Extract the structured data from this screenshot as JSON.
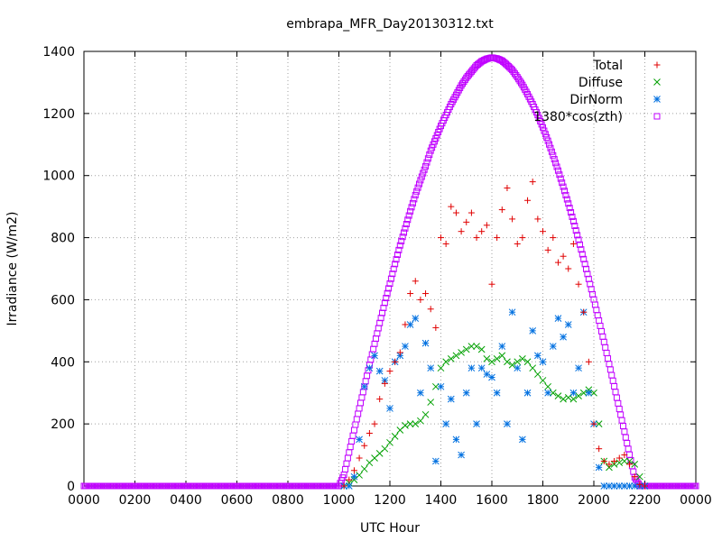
{
  "chart_data": {
    "type": "scatter",
    "title": "embrapa_MFR_Day20130312.txt",
    "xlabel": "UTC Hour",
    "ylabel": "Irradiance (W/m2)",
    "xlim": [
      0,
      24
    ],
    "ylim": [
      0,
      1400
    ],
    "grid": true,
    "legend_position": "top-right",
    "x_tick_labels": [
      "0000",
      "0200",
      "0400",
      "0600",
      "0800",
      "1000",
      "1200",
      "1400",
      "1600",
      "1800",
      "2000",
      "2200",
      "0000"
    ],
    "y_tick_labels": [
      "0",
      "200",
      "400",
      "600",
      "800",
      "1000",
      "1200",
      "1400"
    ],
    "series": [
      {
        "name": "Total",
        "color": "#e00000",
        "marker": "+",
        "x": [
          10.2,
          10.4,
          10.6,
          10.8,
          11.0,
          11.2,
          11.4,
          11.6,
          11.8,
          12.0,
          12.2,
          12.4,
          12.6,
          12.8,
          13.0,
          13.2,
          13.4,
          13.6,
          13.8,
          14.0,
          14.2,
          14.4,
          14.6,
          14.8,
          15.0,
          15.2,
          15.4,
          15.6,
          15.8,
          16.0,
          16.2,
          16.4,
          16.6,
          16.8,
          17.0,
          17.2,
          17.4,
          17.6,
          17.8,
          18.0,
          18.2,
          18.4,
          18.6,
          18.8,
          19.0,
          19.2,
          19.4,
          19.6,
          19.8,
          20.0,
          20.2,
          20.4,
          20.6,
          20.8,
          21.0,
          21.2,
          21.4,
          21.6,
          21.8,
          22.0
        ],
        "y": [
          0,
          20,
          50,
          90,
          130,
          170,
          200,
          280,
          330,
          370,
          400,
          430,
          520,
          620,
          660,
          600,
          620,
          570,
          510,
          800,
          780,
          900,
          880,
          820,
          850,
          880,
          800,
          820,
          840,
          650,
          800,
          890,
          960,
          860,
          780,
          800,
          920,
          980,
          860,
          820,
          760,
          800,
          720,
          740,
          700,
          780,
          650,
          560,
          400,
          200,
          120,
          80,
          70,
          80,
          90,
          100,
          70,
          30,
          5,
          0
        ]
      },
      {
        "name": "Diffuse",
        "color": "#00a000",
        "marker": "x",
        "x": [
          10.2,
          10.4,
          10.6,
          10.8,
          11.0,
          11.2,
          11.4,
          11.6,
          11.8,
          12.0,
          12.2,
          12.4,
          12.6,
          12.8,
          13.0,
          13.2,
          13.4,
          13.6,
          13.8,
          14.0,
          14.2,
          14.4,
          14.6,
          14.8,
          15.0,
          15.2,
          15.4,
          15.6,
          15.8,
          16.0,
          16.2,
          16.4,
          16.6,
          16.8,
          17.0,
          17.2,
          17.4,
          17.6,
          17.8,
          18.0,
          18.2,
          18.4,
          18.6,
          18.8,
          19.0,
          19.2,
          19.4,
          19.6,
          19.8,
          20.0,
          20.2,
          20.4,
          20.6,
          20.8,
          21.0,
          21.2,
          21.4,
          21.6,
          21.8,
          22.0
        ],
        "y": [
          0,
          10,
          20,
          35,
          55,
          75,
          90,
          105,
          120,
          140,
          160,
          180,
          195,
          200,
          200,
          210,
          230,
          270,
          320,
          380,
          400,
          410,
          420,
          430,
          440,
          450,
          450,
          440,
          410,
          400,
          410,
          420,
          400,
          390,
          400,
          410,
          400,
          380,
          360,
          340,
          320,
          300,
          290,
          280,
          285,
          280,
          290,
          300,
          310,
          300,
          200,
          80,
          60,
          70,
          75,
          80,
          80,
          70,
          30,
          0
        ]
      },
      {
        "name": "DirNorm",
        "color": "#0070e0",
        "marker": "*",
        "x": [
          10.2,
          10.4,
          10.6,
          10.8,
          11.0,
          11.2,
          11.4,
          11.6,
          11.8,
          12.0,
          12.2,
          12.4,
          12.6,
          12.8,
          13.0,
          13.2,
          13.4,
          13.6,
          13.8,
          14.0,
          14.2,
          14.4,
          14.6,
          14.8,
          15.0,
          15.2,
          15.4,
          15.6,
          15.8,
          16.0,
          16.2,
          16.4,
          16.6,
          16.8,
          17.0,
          17.2,
          17.4,
          17.6,
          17.8,
          18.0,
          18.2,
          18.4,
          18.6,
          18.8,
          19.0,
          19.2,
          19.4,
          19.6,
          19.8,
          20.0,
          20.2,
          20.4,
          20.6,
          20.8,
          21.0,
          21.2,
          21.4,
          21.6,
          21.8,
          22.0
        ],
        "y": [
          0,
          0,
          30,
          150,
          320,
          380,
          420,
          370,
          340,
          250,
          400,
          420,
          450,
          520,
          540,
          300,
          460,
          380,
          80,
          320,
          200,
          280,
          150,
          100,
          300,
          380,
          200,
          380,
          360,
          350,
          300,
          450,
          200,
          560,
          380,
          150,
          300,
          500,
          420,
          400,
          300,
          450,
          540,
          480,
          520,
          300,
          380,
          560,
          300,
          200,
          60,
          0,
          0,
          0,
          0,
          0,
          0,
          0,
          0,
          0
        ]
      },
      {
        "name": "1380*cos(zth)",
        "color": "#c000ff",
        "marker": "square",
        "amplitude": 1380,
        "x": [
          0,
          0.5,
          1,
          1.5,
          2,
          2.5,
          3,
          3.5,
          4,
          4.5,
          5,
          5.5,
          6,
          6.5,
          7,
          7.5,
          8,
          8.5,
          9,
          9.5,
          10,
          10.2,
          10.4,
          10.6,
          10.8,
          11.0,
          11.2,
          11.4,
          11.6,
          11.8,
          12.0,
          12.2,
          12.4,
          12.6,
          12.8,
          13.0,
          13.2,
          13.4,
          13.6,
          13.8,
          14.0,
          14.2,
          14.4,
          14.6,
          14.8,
          15.0,
          15.2,
          15.4,
          15.6,
          15.8,
          16.0,
          16.2,
          16.4,
          16.6,
          16.8,
          17.0,
          17.2,
          17.4,
          17.6,
          17.8,
          18.0,
          18.2,
          18.4,
          18.6,
          18.8,
          19.0,
          19.2,
          19.4,
          19.6,
          19.8,
          20.0,
          20.2,
          20.4,
          20.6,
          20.8,
          21.0,
          21.2,
          21.4,
          21.6,
          21.8,
          22.0,
          22.2,
          22.5,
          23,
          23.5,
          24
        ],
        "y": [
          0,
          0,
          0,
          0,
          0,
          0,
          0,
          0,
          0,
          0,
          0,
          0,
          0,
          0,
          0,
          0,
          0,
          0,
          0,
          0,
          0,
          36,
          108,
          180,
          250,
          320,
          390,
          458,
          525,
          590,
          652,
          715,
          775,
          830,
          885,
          937,
          985,
          1030,
          1080,
          1120,
          1160,
          1195,
          1230,
          1260,
          1290,
          1315,
          1335,
          1355,
          1368,
          1376,
          1380,
          1377,
          1370,
          1356,
          1340,
          1317,
          1292,
          1262,
          1230,
          1195,
          1155,
          1112,
          1065,
          1016,
          964,
          910,
          853,
          793,
          731,
          667,
          601,
          533,
          464,
          393,
          321,
          248,
          175,
          101,
          28,
          0,
          0,
          0,
          0,
          0,
          0,
          0
        ]
      }
    ]
  }
}
